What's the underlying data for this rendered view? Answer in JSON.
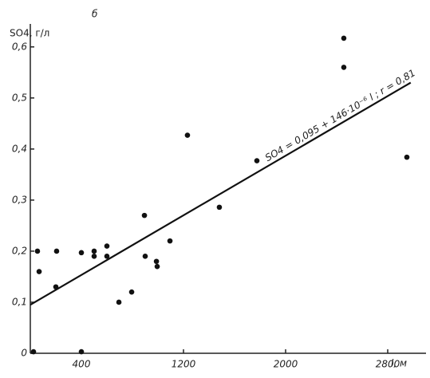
{
  "chart_data": {
    "type": "scatter",
    "panel_label": "б",
    "ylabel": "SO4, г/л",
    "xlabel": "l, м",
    "equation": "SO4 = 0,095 + 146·10⁻⁶ l ; r = 0,81",
    "xlim": [
      0,
      3100
    ],
    "ylim": [
      0,
      0.645
    ],
    "xticks": [
      400,
      1200,
      2000,
      2800
    ],
    "yticks": [
      {
        "value": 0,
        "label": "0"
      },
      {
        "value": 0.1,
        "label": "0,1"
      },
      {
        "value": 0.2,
        "label": "0,2"
      },
      {
        "value": 0.3,
        "label": "0,3"
      },
      {
        "value": 0.4,
        "label": "0,4"
      },
      {
        "value": 0.5,
        "label": "0,5"
      },
      {
        "value": 0.6,
        "label": "0,6"
      }
    ],
    "color": "#111",
    "x": [
      25,
      56,
      69,
      206,
      200,
      400,
      400,
      500,
      500,
      600,
      600,
      694,
      794,
      894,
      900,
      988,
      994,
      1094,
      1231,
      1481,
      1775,
      2456,
      2456,
      2950
    ],
    "values": [
      0.003,
      0.2,
      0.16,
      0.2,
      0.13,
      0.197,
      0.003,
      0.2,
      0.19,
      0.21,
      0.19,
      0.1,
      0.12,
      0.27,
      0.19,
      0.18,
      0.17,
      0.22,
      0.427,
      0.286,
      0.377,
      0.617,
      0.56,
      0.384
    ],
    "regression_line": {
      "x": [
        0,
        2980
      ],
      "values": [
        0.095,
        0.53
      ]
    }
  }
}
